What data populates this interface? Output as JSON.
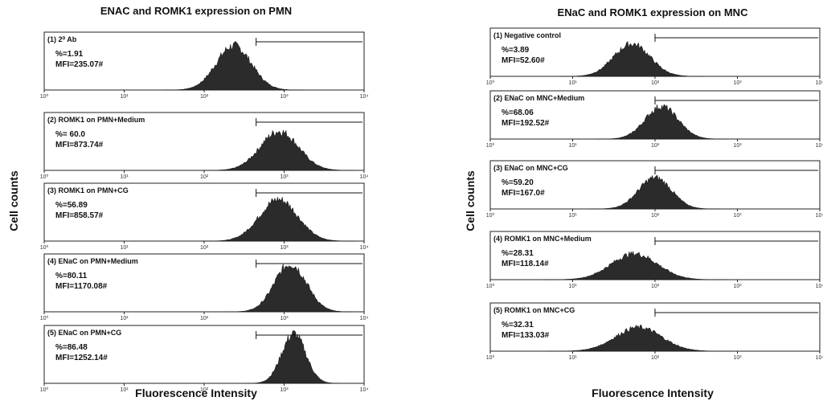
{
  "figures": [
    {
      "title": "ENAC and ROMK1 expression on PMN",
      "y_label": "Cell counts",
      "x_label": "Fluorescence Intensity",
      "x_tick_labels": [
        "10⁰",
        "10¹",
        "10²",
        "10³",
        "10⁴"
      ],
      "panels": [
        {
          "label": "(1) 2⁰ Ab",
          "percent": "%=1.91",
          "mfi": "MFI=235.07#"
        },
        {
          "label": "(2) ROMK1 on PMN+Medium",
          "percent": "%= 60.0",
          "mfi": "MFI=873.74#"
        },
        {
          "label": "(3) ROMK1 on PMN+CG",
          "percent": "%=56.89",
          "mfi": "MFI=858.57#"
        },
        {
          "label": "(4) ENaC on PMN+Medium",
          "percent": "%=80.11",
          "mfi": "MFI=1170.08#"
        },
        {
          "label": "(5) ENaC on PMN+CG",
          "percent": "%=86.48",
          "mfi": "MFI=1252.14#"
        }
      ]
    },
    {
      "title": "ENaC and ROMK1 expression on MNC",
      "y_label": "Cell counts",
      "x_label": "Fluorescence Intensity",
      "x_tick_labels": [
        "10⁰",
        "10¹",
        "10²",
        "10³",
        "10⁴"
      ],
      "panels": [
        {
          "label": "(1) Negative control",
          "percent": "%=3.89",
          "mfi": "MFI=52.60#"
        },
        {
          "label": "(2) ENaC on MNC+Medium",
          "percent": "%=68.06",
          "mfi": "MFI=192.52#"
        },
        {
          "label": "(3) ENaC on MNC+CG",
          "percent": "%=59.20",
          "mfi": "MFI=167.0#"
        },
        {
          "label": "(4) ROMK1 on MNC+Medium",
          "percent": "%=28.31",
          "mfi": "MFI=118.14#"
        },
        {
          "label": "(5) ROMK1 on MNC+CG",
          "percent": "%=32.31",
          "mfi": "MFI=133.03#"
        }
      ]
    }
  ]
}
